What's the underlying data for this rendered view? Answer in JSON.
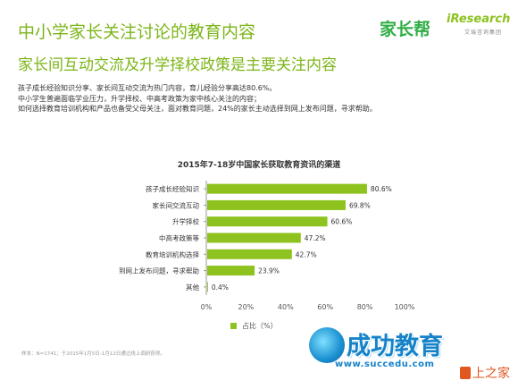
{
  "header": {
    "title": "中小学家长关注讨论的教育内容",
    "subtitle": "家长间互动交流及升学择校政策是主要关注内容"
  },
  "logos": {
    "jiazhangbang": "家长帮",
    "iresearch": "iResearch",
    "iresearch_cn": "艾瑞咨询集团"
  },
  "summary": [
    "孩子成长经验知识分享、家长间互动交流为热门内容，育儿经验分享高达80.6%。",
    "中小学生普遍面临学业压力，升学择校、中高考政策为家中核心关注的内容；",
    "如何选择教育培训机构和产品也备受父母关注，面对教育问题，24%的家长主动选择到网上发布问题，寻求帮助。"
  ],
  "chart_data": {
    "type": "bar",
    "orientation": "horizontal",
    "title": "2015年7-18岁中国家长获取教育资讯的渠道",
    "categories": [
      "孩子成长经验知识",
      "家长间交流互动",
      "升学择校",
      "中高考政策等",
      "教育培训机构选择",
      "到网上发布问题，寻求帮助",
      "其他"
    ],
    "series": [
      {
        "name": "占比（%）",
        "values": [
          80.6,
          69.8,
          60.6,
          47.2,
          42.7,
          23.9,
          0.4
        ]
      }
    ],
    "value_labels": [
      "80.6%",
      "69.8%",
      "60.6%",
      "47.2%",
      "42.7%",
      "23.9%",
      "0.4%"
    ],
    "xlim": [
      0,
      100
    ],
    "x_ticks": [
      "0%",
      "20%",
      "40%",
      "60%",
      "80%",
      "100%"
    ],
    "grid": false,
    "legend_position": "bottom",
    "bar_color": "#8dc21f"
  },
  "footnote": "样本：N=1741；于2015年1月5日-1月12日通过线上调研获得。",
  "watermark": {
    "main": "成功教育",
    "url": "www.succedu.com",
    "brand": "上之家"
  },
  "colors": {
    "accent": "#7cb518",
    "bar": "#8dc21f",
    "watermark_blue": "#1683c9"
  }
}
